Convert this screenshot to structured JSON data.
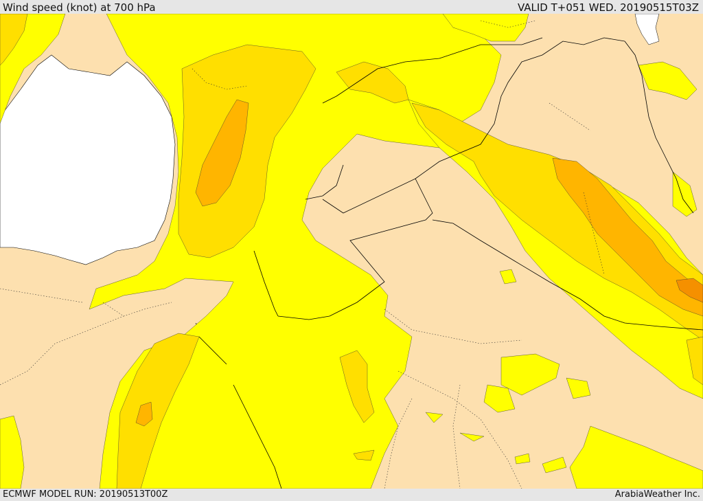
{
  "header": {
    "title": "Wind speed (knot) at 700 hPa",
    "valid": "VALID T+051 WED. 20190515T03Z"
  },
  "footer": {
    "model_run": "ECMWF MODEL RUN: 20190513T00Z",
    "provider": "ArabiaWeather Inc."
  },
  "legend_colors": {
    "sea": "#ffffff",
    "land_background": "#fde0af",
    "band_1": "#ffff00",
    "band_2": "#ffdf00",
    "band_3": "#ffb500",
    "band_4": "#f59000",
    "border": "#000000"
  }
}
